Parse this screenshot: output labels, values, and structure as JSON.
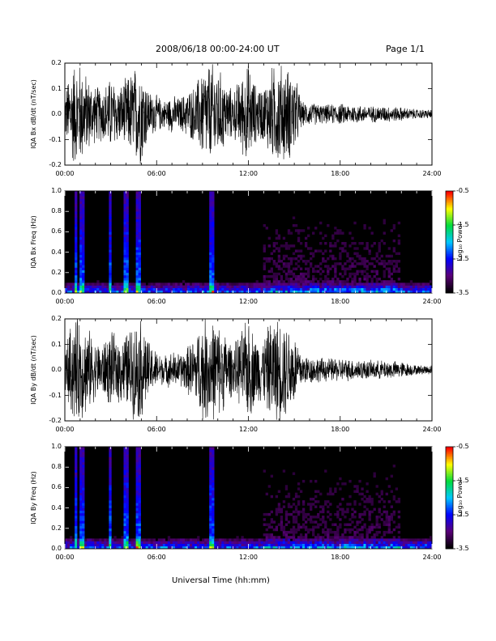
{
  "header": {
    "title": "2008/06/18  00:00-24:00 UT",
    "page": "Page 1/1"
  },
  "xlabel": "Universal Time (hh:mm)",
  "side_note": "",
  "chart_data": [
    {
      "type": "line",
      "ylabel": "IQA Bx dB/dt (nT/sec)",
      "ylim": [
        -0.2,
        0.2
      ],
      "yticks": [
        "0.2",
        "0.1",
        "0.0",
        "-0.1",
        "-0.2"
      ],
      "xticks": [
        "00:00",
        "06:00",
        "12:00",
        "18:00",
        "24:00"
      ],
      "xlim": [
        0,
        24
      ],
      "envelope": {
        "x": [
          0,
          0.5,
          1,
          1.5,
          2,
          2.5,
          3,
          3.5,
          4,
          4.5,
          5,
          5.5,
          6,
          6.5,
          7,
          7.5,
          8,
          8.5,
          9,
          9.5,
          10,
          10.5,
          11,
          11.5,
          12,
          12.5,
          13,
          13.5,
          14,
          14.5,
          15,
          15.5,
          16,
          17,
          18,
          19,
          20,
          21,
          22,
          23,
          24
        ],
        "amp": [
          0.1,
          0.22,
          0.22,
          0.16,
          0.12,
          0.12,
          0.16,
          0.12,
          0.15,
          0.2,
          0.22,
          0.1,
          0.08,
          0.06,
          0.08,
          0.07,
          0.1,
          0.12,
          0.2,
          0.22,
          0.2,
          0.14,
          0.1,
          0.16,
          0.22,
          0.12,
          0.12,
          0.2,
          0.22,
          0.2,
          0.18,
          0.05,
          0.05,
          0.04,
          0.045,
          0.04,
          0.035,
          0.035,
          0.03,
          0.02,
          0.02
        ]
      }
    },
    {
      "type": "heatmap",
      "ylabel": "IQA Bx Freq (Hz)",
      "ylim": [
        0,
        1.0
      ],
      "yticks": [
        "1.0",
        "0.8",
        "0.6",
        "0.4",
        "0.2",
        "0.0"
      ],
      "xticks": [
        "00:00",
        "06:00",
        "12:00",
        "18:00",
        "24:00"
      ],
      "xlim": [
        0,
        24
      ],
      "colorbar": {
        "label": "Log₁₀ Power",
        "ticks": [
          "-0.5",
          "-1.5",
          "-2.5",
          "-3.5"
        ],
        "range": [
          -3.5,
          -0.5
        ]
      },
      "spikes": [
        0.7,
        1.1,
        3.0,
        4.0,
        4.8,
        9.6
      ]
    },
    {
      "type": "line",
      "ylabel": "IQA By dB/dt (nT/sec)",
      "ylim": [
        -0.2,
        0.2
      ],
      "yticks": [
        "0.2",
        "0.1",
        "0.0",
        "-0.1",
        "-0.2"
      ],
      "xticks": [
        "00:00",
        "06:00",
        "12:00",
        "18:00",
        "24:00"
      ],
      "xlim": [
        0,
        24
      ],
      "envelope": {
        "x": [
          0,
          0.5,
          1,
          1.5,
          2,
          2.5,
          3,
          3.5,
          4,
          4.5,
          5,
          5.5,
          6,
          6.5,
          7,
          7.5,
          8,
          8.5,
          9,
          9.5,
          10,
          10.5,
          11,
          11.5,
          12,
          12.5,
          13,
          13.5,
          14,
          14.5,
          15,
          15.5,
          16,
          17,
          18,
          19,
          20,
          21,
          22,
          23,
          24
        ],
        "amp": [
          0.1,
          0.22,
          0.22,
          0.18,
          0.12,
          0.12,
          0.16,
          0.14,
          0.16,
          0.2,
          0.22,
          0.12,
          0.08,
          0.06,
          0.08,
          0.07,
          0.1,
          0.14,
          0.22,
          0.22,
          0.2,
          0.16,
          0.1,
          0.16,
          0.22,
          0.14,
          0.14,
          0.22,
          0.22,
          0.2,
          0.16,
          0.07,
          0.06,
          0.05,
          0.05,
          0.045,
          0.04,
          0.04,
          0.035,
          0.02,
          0.02
        ]
      }
    },
    {
      "type": "heatmap",
      "ylabel": "IQA By Freq (Hz)",
      "ylim": [
        0,
        1.0
      ],
      "yticks": [
        "1.0",
        "0.8",
        "0.6",
        "0.4",
        "0.2",
        "0.0"
      ],
      "xticks": [
        "00:00",
        "06:00",
        "12:00",
        "18:00",
        "24:00"
      ],
      "xlim": [
        0,
        24
      ],
      "colorbar": {
        "label": "Log₁₀ Power",
        "ticks": [
          "-0.5",
          "-1.5",
          "-2.5",
          "-3.5"
        ],
        "range": [
          -3.5,
          -0.5
        ]
      },
      "spikes": [
        0.7,
        1.1,
        3.0,
        4.0,
        4.8,
        9.6
      ]
    }
  ]
}
